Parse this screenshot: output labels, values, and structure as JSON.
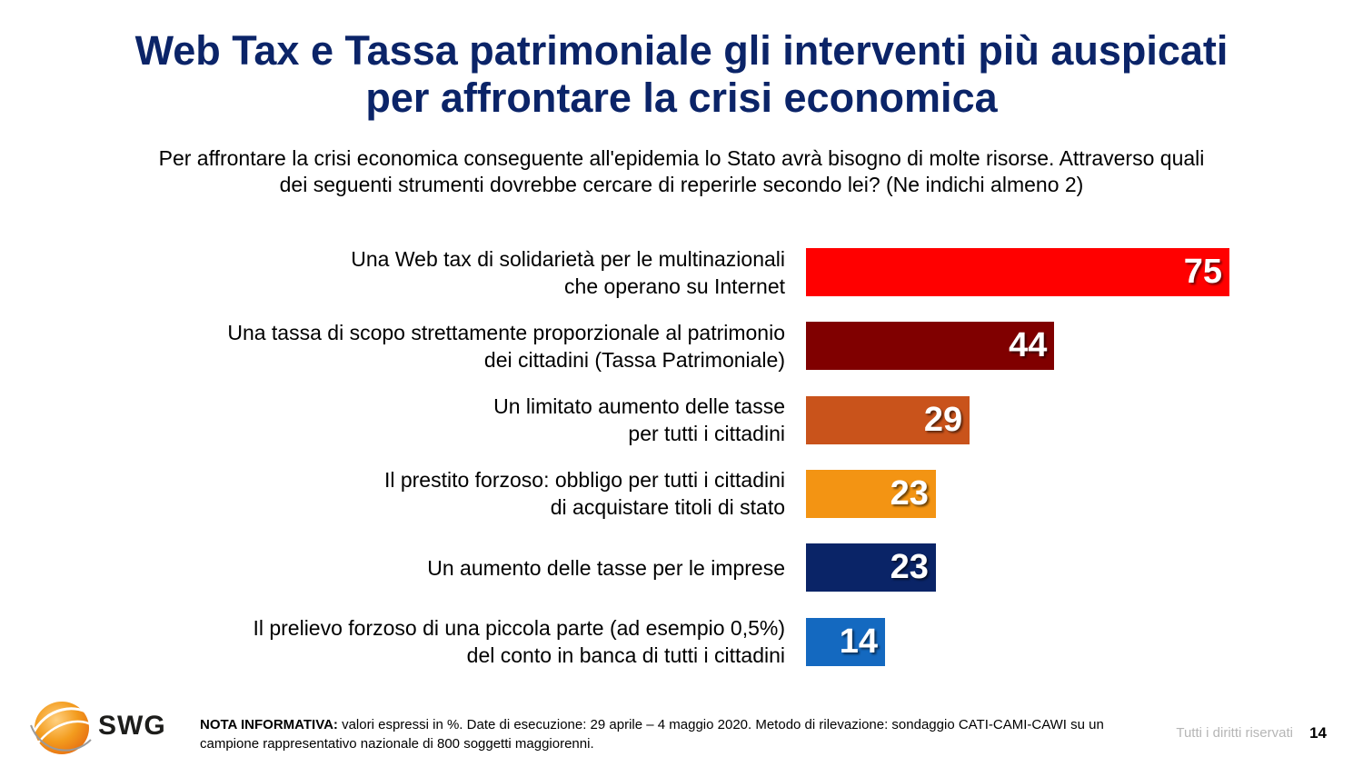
{
  "title": {
    "line1": "Web Tax e Tassa patrimoniale gli interventi più auspicati",
    "line2": "per affrontare la crisi economica"
  },
  "subtitle": {
    "line1": "Per affrontare la crisi economica conseguente all'epidemia lo Stato avrà bisogno di molte risorse. Attraverso quali",
    "line2": "dei seguenti strumenti dovrebbe cercare di reperirle secondo lei? (Ne indichi almeno 2)"
  },
  "chart_data": {
    "type": "bar",
    "orientation": "horizontal",
    "xlim": [
      0,
      100
    ],
    "categories": [
      [
        "Una Web tax di solidarietà per le multinazionali",
        "che operano su Internet"
      ],
      [
        "Una tassa di scopo strettamente proporzionale al patrimonio",
        "dei cittadini (Tassa Patrimoniale)"
      ],
      [
        "Un limitato aumento delle tasse",
        "per tutti i cittadini"
      ],
      [
        "Il prestito forzoso: obbligo per tutti i cittadini",
        "di acquistare titoli di stato"
      ],
      [
        "Un aumento delle tasse per le imprese"
      ],
      [
        "Il prelievo forzoso di una piccola parte (ad esempio 0,5%)",
        "del conto in banca di tutti i cittadini"
      ]
    ],
    "values": [
      75,
      44,
      29,
      23,
      23,
      14
    ],
    "colors": [
      "#ff0000",
      "#800000",
      "#c9531b",
      "#f39413",
      "#0a2467",
      "#1469c0"
    ],
    "data_labels": [
      "75",
      "44",
      "29",
      "23",
      "23",
      "14"
    ]
  },
  "footer": {
    "logo_text": "SWG",
    "note_bold": "NOTA INFORMATIVA:",
    "note_text": " valori espressi in %. Date di esecuzione: 29 aprile – 4 maggio 2020. Metodo di rilevazione: sondaggio CATI-CAMI-CAWI su un campione rappresentativo nazionale di 800 soggetti maggiorenni.",
    "rights": "Tutti i diritti riservati",
    "page_number": "14"
  }
}
